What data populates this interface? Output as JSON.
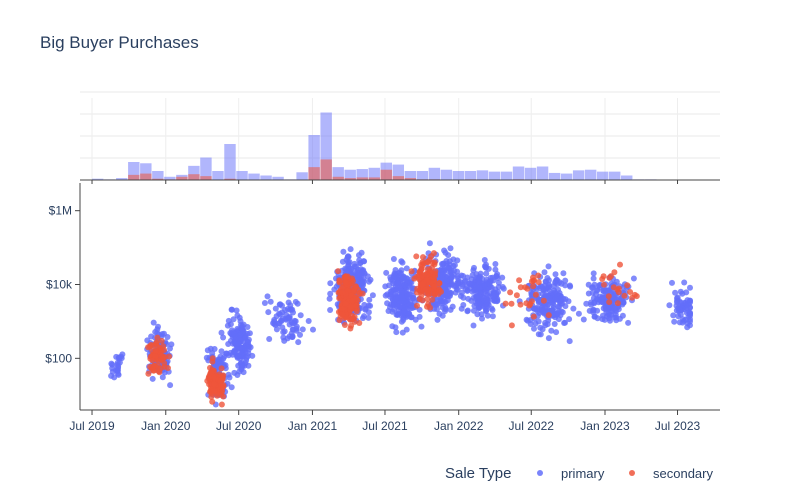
{
  "chart_data": {
    "type": "scatter",
    "title": "Big Buyer Purchases",
    "xlabel": "",
    "ylabel": "",
    "y_scale": "log",
    "ylim_log10": [
      0.6,
      6.75
    ],
    "x_range": [
      "2019-06-01",
      "2023-10-15"
    ],
    "x_ticks": [
      {
        "date": "2019-07-01",
        "label": "Jul 2019"
      },
      {
        "date": "2020-01-01",
        "label": "Jan 2020"
      },
      {
        "date": "2020-07-01",
        "label": "Jul 2020"
      },
      {
        "date": "2021-01-01",
        "label": "Jan 2021"
      },
      {
        "date": "2021-07-01",
        "label": "Jul 2021"
      },
      {
        "date": "2022-01-01",
        "label": "Jan 2022"
      },
      {
        "date": "2022-07-01",
        "label": "Jul 2022"
      },
      {
        "date": "2023-01-01",
        "label": "Jan 2023"
      },
      {
        "date": "2023-07-01",
        "label": "Jul 2023"
      }
    ],
    "y_ticks": [
      {
        "value": 100,
        "label": "$100"
      },
      {
        "value": 10000,
        "label": "$10k"
      },
      {
        "value": 1000000,
        "label": "$1M"
      }
    ],
    "legend": {
      "title": "Sale Type",
      "placement": "bottom-right",
      "entries": [
        {
          "name": "primary",
          "color": "#636efa"
        },
        {
          "name": "secondary",
          "color": "#ef553b"
        }
      ]
    },
    "scatter_clusters": [
      {
        "series": "primary",
        "date": "2019-09-01",
        "width_days": 20,
        "log10_center": 1.8,
        "log10_spread": 0.35,
        "count": 25
      },
      {
        "series": "primary",
        "date": "2019-12-15",
        "width_days": 35,
        "log10_center": 2.1,
        "log10_spread": 0.45,
        "count": 110
      },
      {
        "series": "secondary",
        "date": "2019-12-10",
        "width_days": 30,
        "log10_center": 2.0,
        "log10_spread": 0.35,
        "count": 60
      },
      {
        "series": "primary",
        "date": "2020-05-10",
        "width_days": 30,
        "log10_center": 1.6,
        "log10_spread": 0.5,
        "count": 110
      },
      {
        "series": "secondary",
        "date": "2020-05-05",
        "width_days": 25,
        "log10_center": 1.4,
        "log10_spread": 0.35,
        "count": 90
      },
      {
        "series": "primary",
        "date": "2020-07-01",
        "width_days": 35,
        "log10_center": 2.5,
        "log10_spread": 0.55,
        "count": 140
      },
      {
        "series": "primary",
        "date": "2020-11-01",
        "width_days": 60,
        "log10_center": 3.0,
        "log10_spread": 0.45,
        "count": 70
      },
      {
        "series": "primary",
        "date": "2021-04-10",
        "width_days": 50,
        "log10_center": 3.9,
        "log10_spread": 0.55,
        "count": 280
      },
      {
        "series": "secondary",
        "date": "2021-04-01",
        "width_days": 30,
        "log10_center": 3.6,
        "log10_spread": 0.45,
        "count": 200
      },
      {
        "series": "primary",
        "date": "2021-08-15",
        "width_days": 45,
        "log10_center": 3.7,
        "log10_spread": 0.5,
        "count": 200
      },
      {
        "series": "primary",
        "date": "2021-11-20",
        "width_days": 50,
        "log10_center": 4.0,
        "log10_spread": 0.55,
        "count": 220
      },
      {
        "series": "secondary",
        "date": "2021-10-15",
        "width_days": 35,
        "log10_center": 4.1,
        "log10_spread": 0.45,
        "count": 120
      },
      {
        "series": "primary",
        "date": "2022-03-01",
        "width_days": 55,
        "log10_center": 3.8,
        "log10_spread": 0.45,
        "count": 180
      },
      {
        "series": "primary",
        "date": "2022-08-15",
        "width_days": 60,
        "log10_center": 3.5,
        "log10_spread": 0.5,
        "count": 200
      },
      {
        "series": "secondary",
        "date": "2022-07-01",
        "width_days": 70,
        "log10_center": 3.7,
        "log10_spread": 0.5,
        "count": 25
      },
      {
        "series": "primary",
        "date": "2023-01-15",
        "width_days": 60,
        "log10_center": 3.6,
        "log10_spread": 0.4,
        "count": 160
      },
      {
        "series": "secondary",
        "date": "2023-02-01",
        "width_days": 70,
        "log10_center": 3.9,
        "log10_spread": 0.35,
        "count": 20
      },
      {
        "series": "primary",
        "date": "2023-07-15",
        "width_days": 40,
        "log10_center": 3.3,
        "log10_spread": 0.4,
        "count": 60
      }
    ],
    "histogram": {
      "bin_width_days": 30,
      "start_date": "2019-07-01",
      "y_max": 140,
      "series": [
        {
          "name": "primary",
          "values": [
            2,
            1,
            3,
            28,
            26,
            14,
            5,
            8,
            22,
            35,
            14,
            56,
            14,
            10,
            7,
            5,
            1,
            12,
            70,
            105,
            20,
            16,
            17,
            19,
            27,
            24,
            14,
            14,
            19,
            16,
            14,
            14,
            15,
            13,
            13,
            21,
            19,
            21,
            11,
            10,
            15,
            16,
            13,
            13,
            7,
            1,
            1
          ]
        },
        {
          "name": "secondary",
          "values": [
            0,
            0,
            0,
            8,
            10,
            2,
            1,
            5,
            9,
            6,
            0,
            2,
            0,
            0,
            0,
            0,
            0,
            0,
            20,
            32,
            5,
            3,
            4,
            4,
            16,
            6,
            3,
            1,
            1,
            0,
            0,
            1,
            0,
            0,
            0,
            1,
            0,
            0,
            0,
            0,
            0,
            0,
            0,
            0,
            0,
            0,
            0
          ]
        }
      ]
    }
  }
}
